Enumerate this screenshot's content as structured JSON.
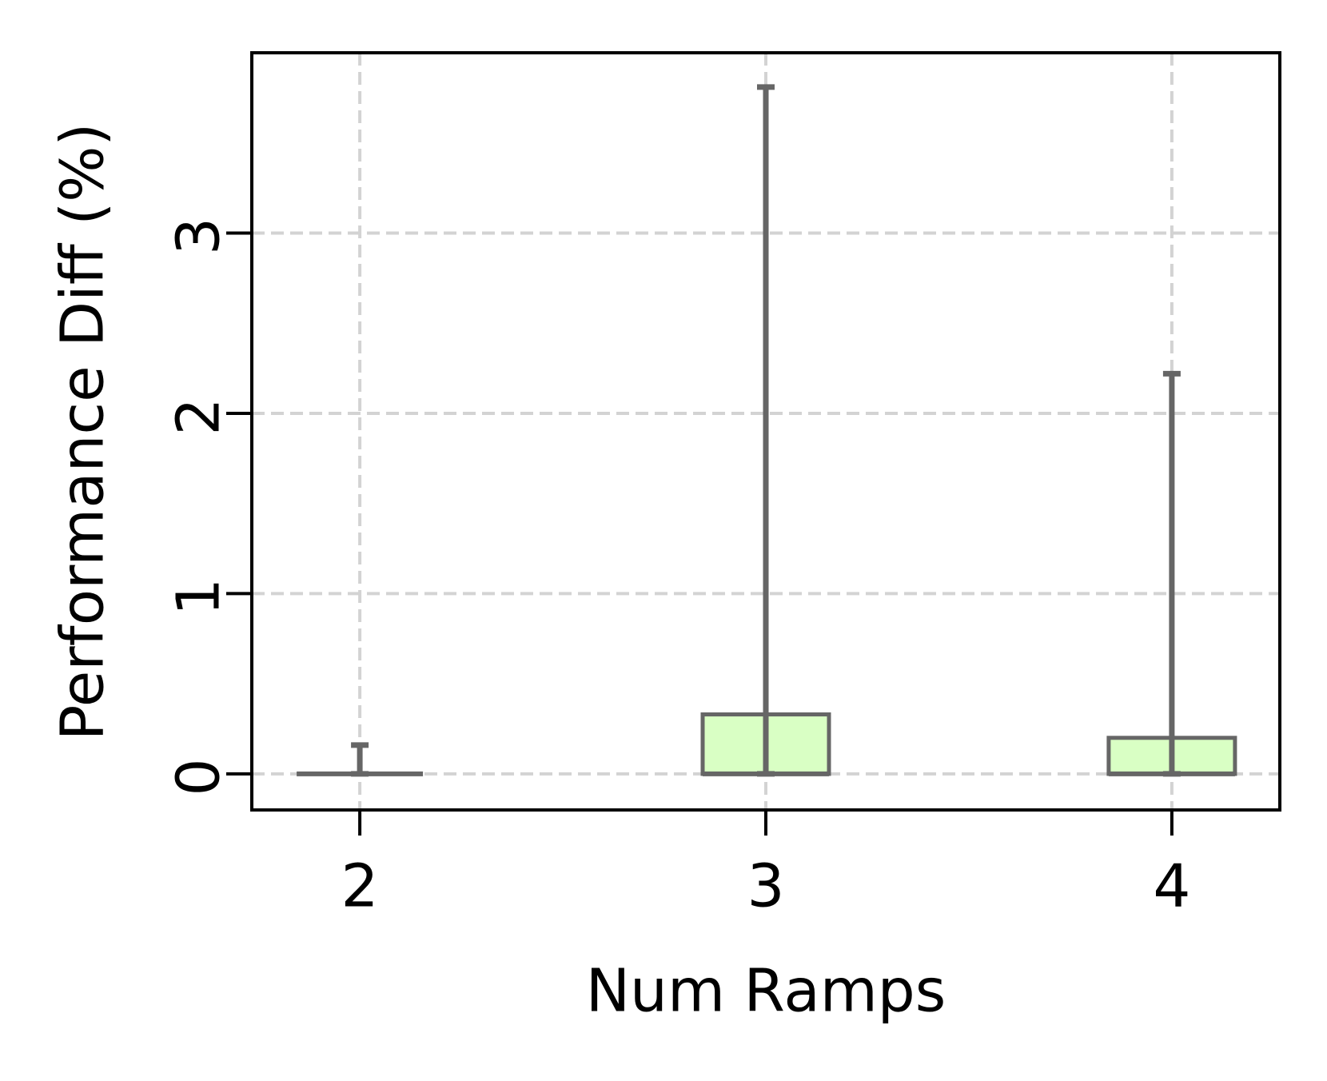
{
  "chart_data": {
    "type": "box",
    "x_label": "Num Ramps",
    "y_label": "Performance Diff (%)",
    "categories": [
      "2",
      "3",
      "4"
    ],
    "boxes": [
      {
        "whislo": 0,
        "q1": 0,
        "med": 0,
        "q3": 0,
        "whishi": 0.16
      },
      {
        "whislo": 0,
        "q1": 0,
        "med": 0,
        "q3": 0.33,
        "whishi": 3.81
      },
      {
        "whislo": 0,
        "q1": 0,
        "med": 0,
        "q3": 0.2,
        "whishi": 2.22
      }
    ],
    "color": "#d9ffc4",
    "edge_color": "#666666",
    "ylim": [
      -0.2,
      4.0
    ],
    "yticks": [
      0,
      1,
      2,
      3
    ],
    "grid": true
  }
}
